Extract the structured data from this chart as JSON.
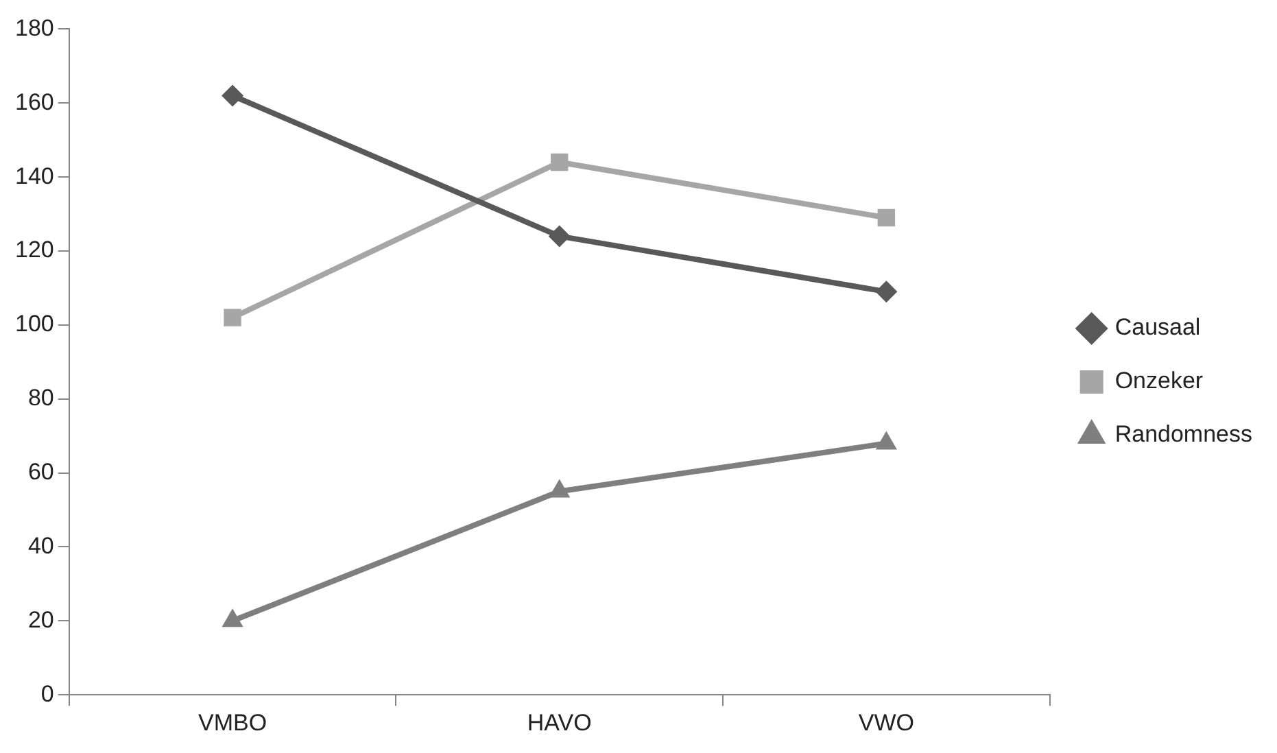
{
  "chart_data": {
    "type": "line",
    "categories": [
      "VMBO",
      "HAVO",
      "VWO"
    ],
    "series": [
      {
        "name": "Causaal",
        "color": "#595959",
        "marker": "diamond",
        "values": [
          162,
          124,
          109
        ]
      },
      {
        "name": "Onzeker",
        "color": "#a6a6a6",
        "marker": "square",
        "values": [
          102,
          144,
          129
        ]
      },
      {
        "name": "Randomness",
        "color": "#7f7f7f",
        "marker": "triangle",
        "values": [
          20,
          55,
          68
        ]
      }
    ],
    "ylim": [
      0,
      180
    ],
    "yticks": [
      0,
      20,
      40,
      60,
      80,
      100,
      120,
      140,
      160,
      180
    ],
    "grid": false,
    "legend": "right",
    "line_style": "solid"
  }
}
